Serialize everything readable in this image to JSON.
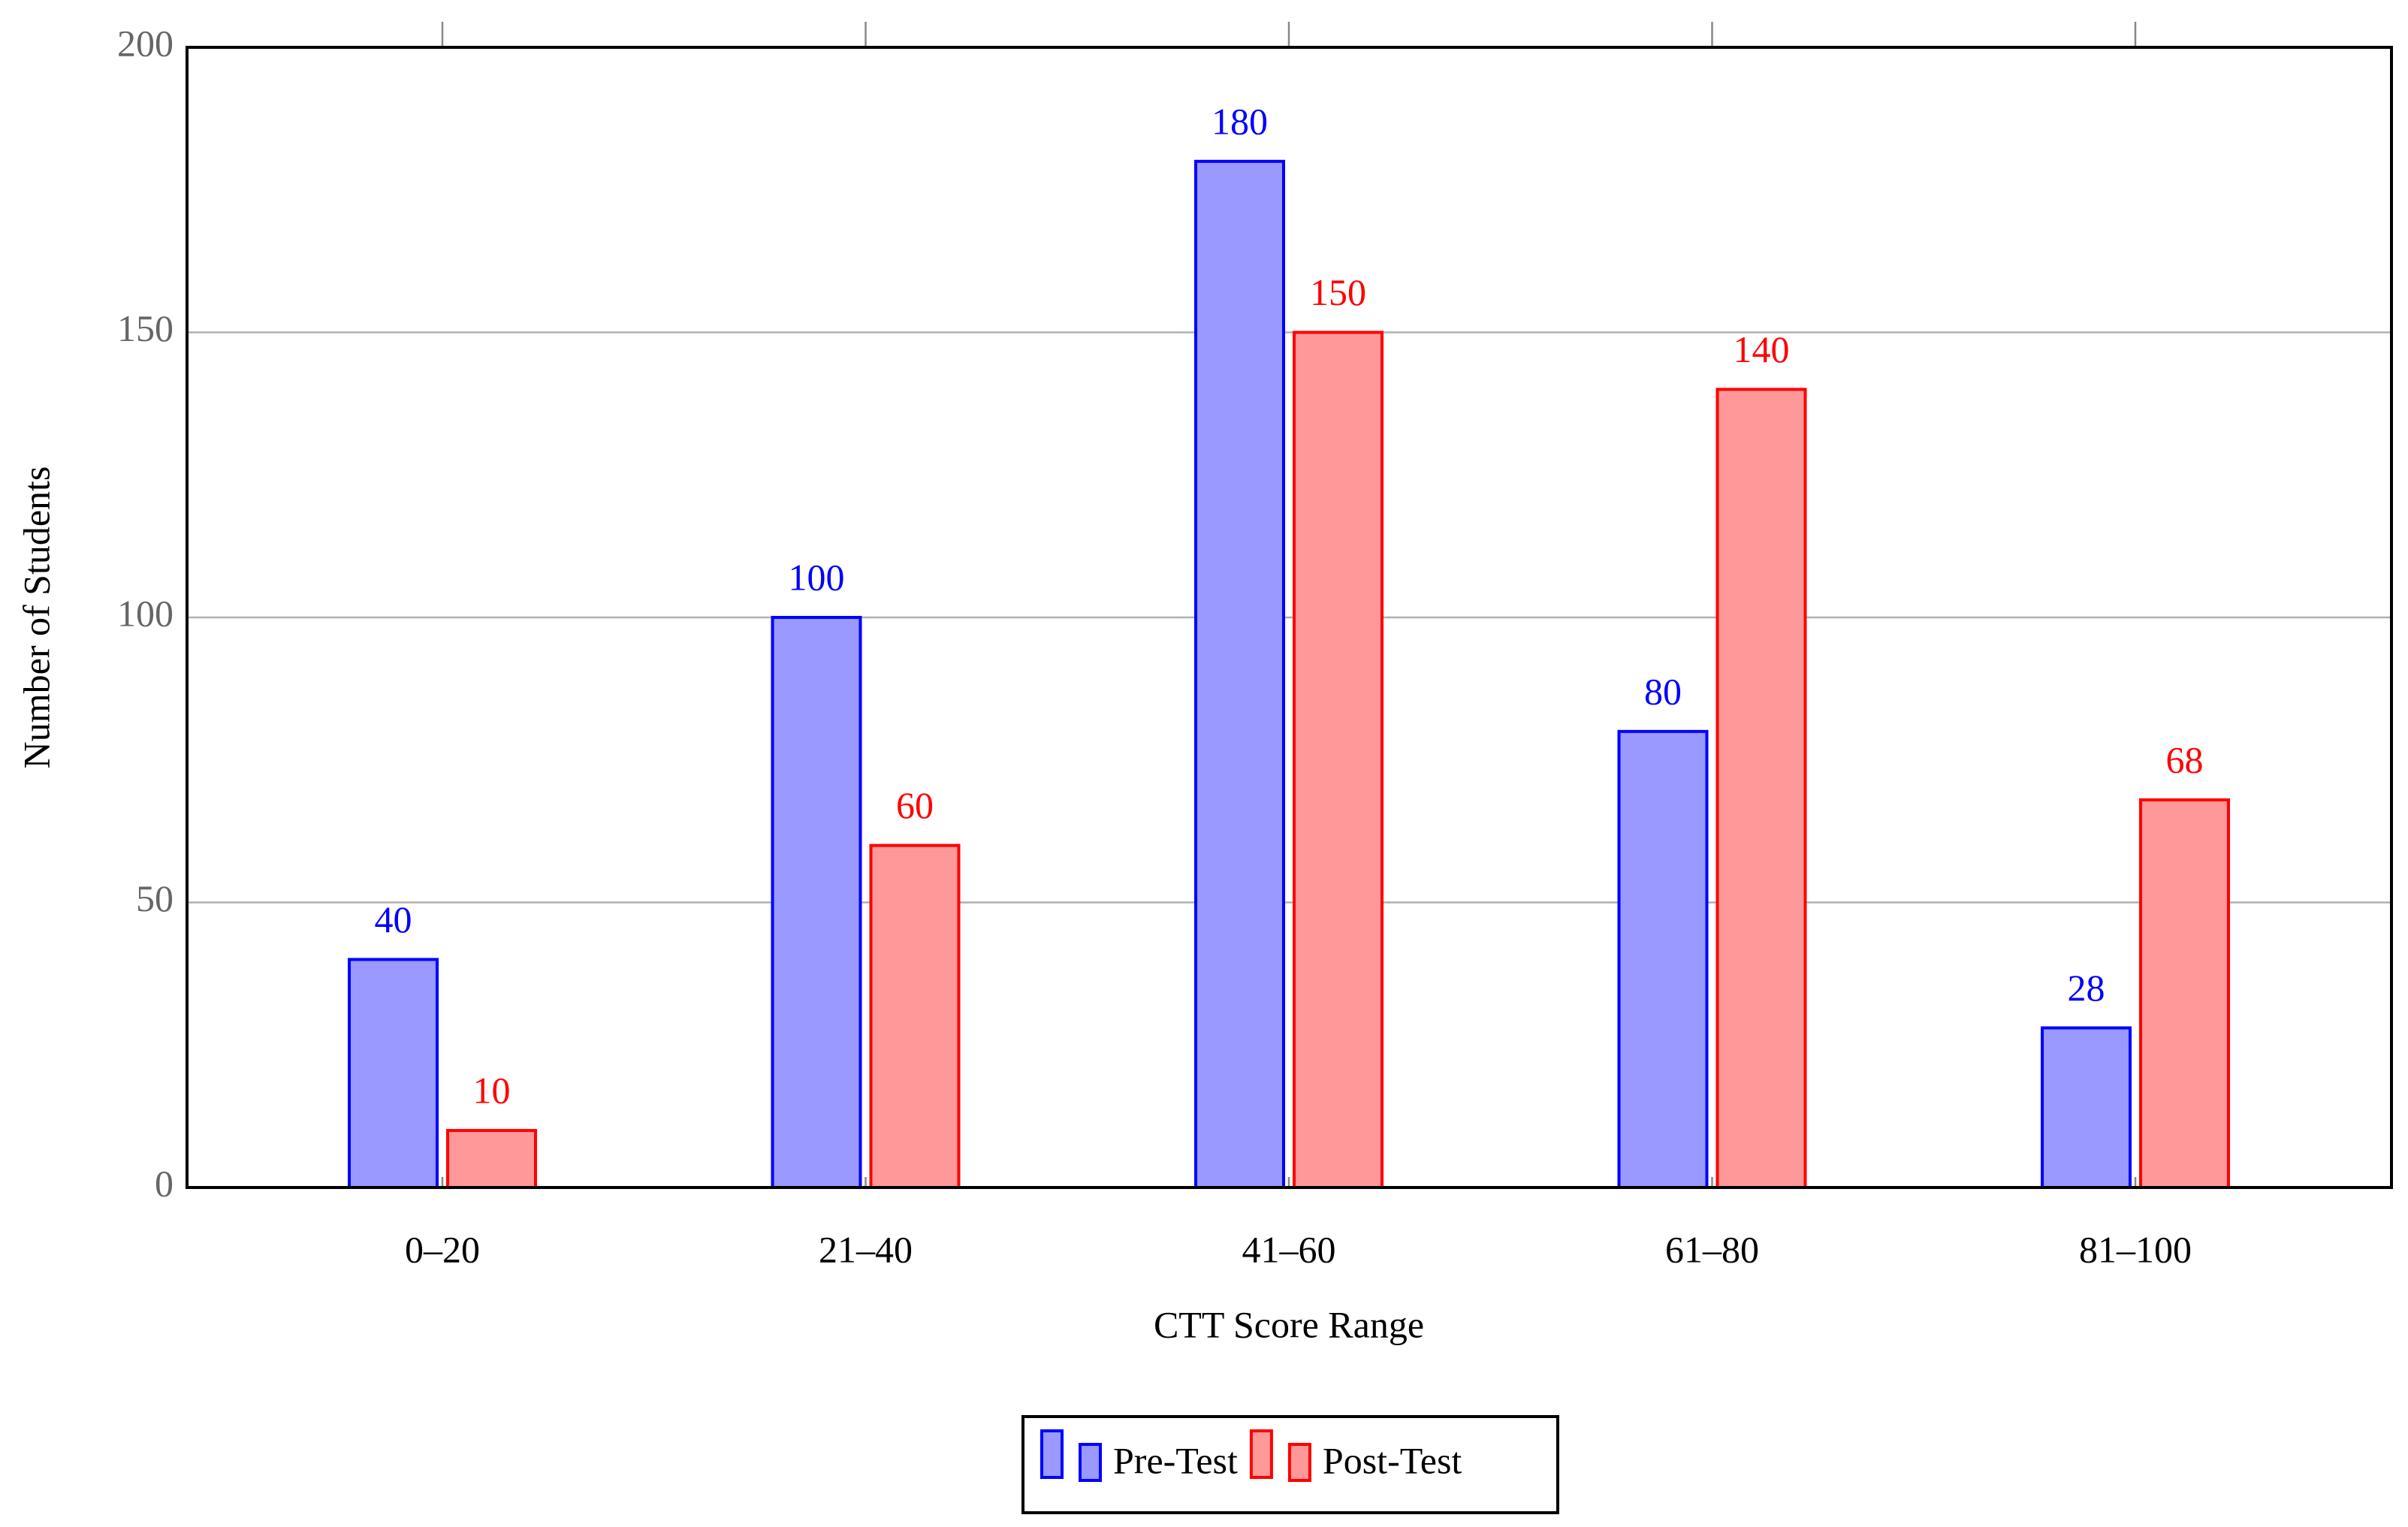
{
  "chart_data": {
    "type": "bar",
    "x_label": "CTT Score Range",
    "y_label": "Number of Students",
    "categories": [
      "0–20",
      "21–40",
      "41–60",
      "61–80",
      "81–100"
    ],
    "series": [
      {
        "name": "Pre-Test",
        "color": "#0000ff",
        "fill": "#9999ff",
        "values": [
          40,
          100,
          180,
          80,
          28
        ]
      },
      {
        "name": "Post-Test",
        "color": "#ff0000",
        "fill": "#ff9999",
        "values": [
          10,
          60,
          150,
          140,
          68
        ]
      }
    ],
    "ylim": [
      0,
      200
    ],
    "yticks": [
      0,
      50,
      100,
      150,
      200
    ],
    "grid": true,
    "legend": "bottom"
  }
}
